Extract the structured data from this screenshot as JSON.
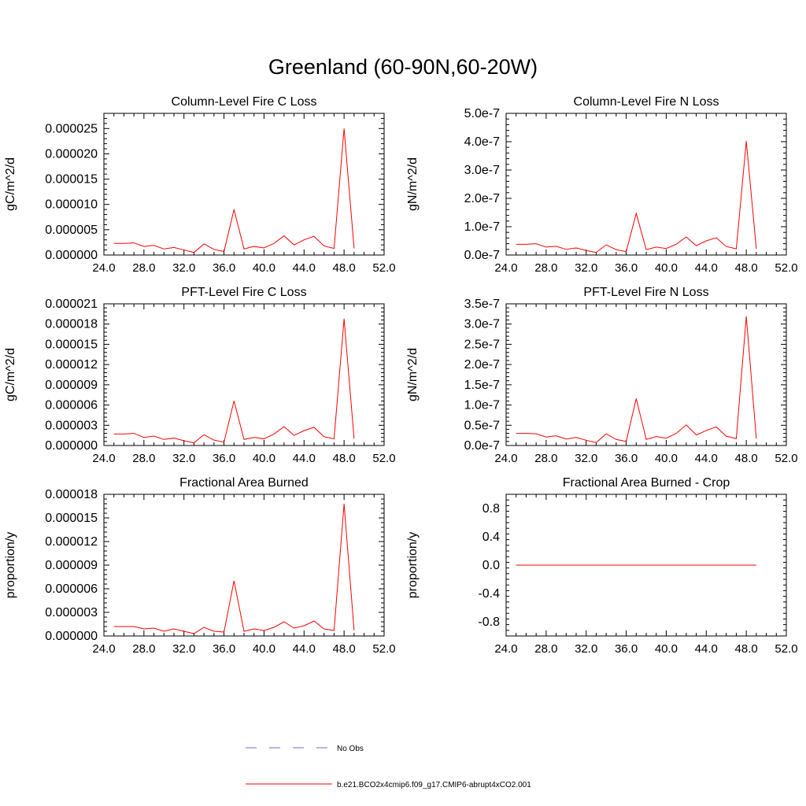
{
  "figure": {
    "title": "Greenland (60-90N,60-20W)"
  },
  "chart_data": [
    {
      "type": "line",
      "title": "Column-Level Fire C Loss",
      "ylabel": "gC/m^2/d",
      "xlim": [
        24,
        52
      ],
      "ylim": [
        0,
        2.8e-05
      ],
      "xticks": [
        "24.0",
        "28.0",
        "32.0",
        "36.0",
        "40.0",
        "44.0",
        "48.0",
        "52.0"
      ],
      "yticks": [
        "0.000000",
        "0.000005",
        "0.000010",
        "0.000015",
        "0.000020",
        "0.000025"
      ],
      "series": [
        {
          "name": "b.e21.BCO2x4cmip6.f09_g17.CMIP6-abrupt4xCO2.001",
          "color": "#ff0000",
          "x": [
            25,
            26,
            27,
            28,
            29,
            30,
            31,
            32,
            33,
            34,
            35,
            36,
            37,
            38,
            39,
            40,
            41,
            42,
            43,
            44,
            45,
            46,
            47,
            48,
            49
          ],
          "y": [
            2.3e-06,
            2.3e-06,
            2.4e-06,
            1.7e-06,
            1.9e-06,
            1.2e-06,
            1.5e-06,
            1e-06,
            5e-07,
            2.2e-06,
            1.1e-06,
            7e-07,
            9e-06,
            1.2e-06,
            1.7e-06,
            1.4e-06,
            2.3e-06,
            3.8e-06,
            2e-06,
            3e-06,
            3.7e-06,
            1.8e-06,
            1.3e-06,
            2.5e-05,
            1.3e-06
          ]
        }
      ]
    },
    {
      "type": "line",
      "title": "Column-Level Fire N Loss",
      "ylabel": "gN/m^2/d",
      "xlim": [
        24,
        52
      ],
      "ylim": [
        0,
        5e-07
      ],
      "xticks": [
        "24.0",
        "28.0",
        "32.0",
        "36.0",
        "40.0",
        "44.0",
        "48.0",
        "52.0"
      ],
      "yticks": [
        "0.0e-7",
        "1.0e-7",
        "2.0e-7",
        "3.0e-7",
        "4.0e-7",
        "5.0e-7"
      ],
      "series": [
        {
          "name": "b.e21.BCO2x4cmip6.f09_g17.CMIP6-abrupt4xCO2.001",
          "color": "#ff0000",
          "x": [
            25,
            26,
            27,
            28,
            29,
            30,
            31,
            32,
            33,
            34,
            35,
            36,
            37,
            38,
            39,
            40,
            41,
            42,
            43,
            44,
            45,
            46,
            47,
            48,
            49
          ],
          "y": [
            3.8e-08,
            3.8e-08,
            4e-08,
            2.8e-08,
            3.1e-08,
            2e-08,
            2.5e-08,
            1.6e-08,
            9e-09,
            3.6e-08,
            1.9e-08,
            1.2e-08,
            1.47e-07,
            1.9e-08,
            2.8e-08,
            2.3e-08,
            3.8e-08,
            6.4e-08,
            3.3e-08,
            5e-08,
            6.1e-08,
            3e-08,
            2.2e-08,
            4.02e-07,
            2.2e-08
          ]
        }
      ]
    },
    {
      "type": "line",
      "title": "PFT-Level Fire C Loss",
      "ylabel": "gC/m^2/d",
      "xlim": [
        24,
        52
      ],
      "ylim": [
        0,
        2.1e-05
      ],
      "xticks": [
        "24.0",
        "28.0",
        "32.0",
        "36.0",
        "40.0",
        "44.0",
        "48.0",
        "52.0"
      ],
      "yticks": [
        "0.000000",
        "0.000003",
        "0.000006",
        "0.000009",
        "0.000012",
        "0.000015",
        "0.000018",
        "0.000021"
      ],
      "series": [
        {
          "name": "b.e21.BCO2x4cmip6.f09_g17.CMIP6-abrupt4xCO2.001",
          "color": "#ff0000",
          "x": [
            25,
            26,
            27,
            28,
            29,
            30,
            31,
            32,
            33,
            34,
            35,
            36,
            37,
            38,
            39,
            40,
            41,
            42,
            43,
            44,
            45,
            46,
            47,
            48,
            49
          ],
          "y": [
            1.7e-06,
            1.7e-06,
            1.8e-06,
            1.2e-06,
            1.4e-06,
            9e-07,
            1.1e-06,
            7e-07,
            4e-07,
            1.6e-06,
            8e-07,
            5e-07,
            6.6e-06,
            9e-07,
            1.2e-06,
            1e-06,
            1.7e-06,
            2.8e-06,
            1.5e-06,
            2.2e-06,
            2.7e-06,
            1.3e-06,
            1e-06,
            1.88e-05,
            1e-06
          ]
        }
      ]
    },
    {
      "type": "line",
      "title": "PFT-Level Fire N Loss",
      "ylabel": "gN/m^2/d",
      "xlim": [
        24,
        52
      ],
      "ylim": [
        0,
        3.5e-07
      ],
      "xticks": [
        "24.0",
        "28.0",
        "32.0",
        "36.0",
        "40.0",
        "44.0",
        "48.0",
        "52.0"
      ],
      "yticks": [
        "0.0e-7",
        "0.5e-7",
        "1.0e-7",
        "1.5e-7",
        "2.0e-7",
        "2.5e-7",
        "3.0e-7",
        "3.5e-7"
      ],
      "series": [
        {
          "name": "b.e21.BCO2x4cmip6.f09_g17.CMIP6-abrupt4xCO2.001",
          "color": "#ff0000",
          "x": [
            25,
            26,
            27,
            28,
            29,
            30,
            31,
            32,
            33,
            34,
            35,
            36,
            37,
            38,
            39,
            40,
            41,
            42,
            43,
            44,
            45,
            46,
            47,
            48,
            49
          ],
          "y": [
            3e-08,
            3e-08,
            2.9e-08,
            2.1e-08,
            2.4e-08,
            1.6e-08,
            2e-08,
            1.3e-08,
            7e-09,
            2.9e-08,
            1.5e-08,
            1e-08,
            1.16e-07,
            1.5e-08,
            2.2e-08,
            1.8e-08,
            3e-08,
            5.1e-08,
            2.6e-08,
            3.7e-08,
            4.6e-08,
            2.3e-08,
            1.7e-08,
            3.19e-07,
            1.7e-08
          ]
        }
      ]
    },
    {
      "type": "line",
      "title": "Fractional Area Burned",
      "ylabel": "proportion/y",
      "xlim": [
        24,
        52
      ],
      "ylim": [
        0,
        1.8e-05
      ],
      "xticks": [
        "24.0",
        "28.0",
        "32.0",
        "36.0",
        "40.0",
        "44.0",
        "48.0",
        "52.0"
      ],
      "yticks": [
        "0.000000",
        "0.000003",
        "0.000006",
        "0.000009",
        "0.000012",
        "0.000015",
        "0.000018"
      ],
      "series": [
        {
          "name": "b.e21.BCO2x4cmip6.f09_g17.CMIP6-abrupt4xCO2.001",
          "color": "#ff0000",
          "x": [
            25,
            26,
            27,
            28,
            29,
            30,
            31,
            32,
            33,
            34,
            35,
            36,
            37,
            38,
            39,
            40,
            41,
            42,
            43,
            44,
            45,
            46,
            47,
            48,
            49
          ],
          "y": [
            1.2e-06,
            1.2e-06,
            1.2e-06,
            9e-07,
            1e-06,
            6e-07,
            9e-07,
            6e-07,
            3e-07,
            1.1e-06,
            6e-07,
            5e-07,
            7e-06,
            6e-07,
            9e-07,
            7e-07,
            1.1e-06,
            1.8e-06,
            1e-06,
            1.3e-06,
            1.9e-06,
            9e-07,
            7e-07,
            1.68e-05,
            7e-07
          ]
        }
      ]
    },
    {
      "type": "line",
      "title": "Fractional Area Burned - Crop",
      "ylabel": "proportion/y",
      "xlim": [
        24,
        52
      ],
      "ylim": [
        -1,
        1
      ],
      "xticks": [
        "24.0",
        "28.0",
        "32.0",
        "36.0",
        "40.0",
        "44.0",
        "48.0",
        "52.0"
      ],
      "yticks": [
        "-0.8",
        "-0.4",
        "0.0",
        "0.4",
        "0.8"
      ],
      "series": [
        {
          "name": "b.e21.BCO2x4cmip6.f09_g17.CMIP6-abrupt4xCO2.001",
          "color": "#ff0000",
          "x": [
            25,
            26,
            27,
            28,
            29,
            30,
            31,
            32,
            33,
            34,
            35,
            36,
            37,
            38,
            39,
            40,
            41,
            42,
            43,
            44,
            45,
            46,
            47,
            48,
            49
          ],
          "y": [
            0,
            0,
            0,
            0,
            0,
            0,
            0,
            0,
            0,
            0,
            0,
            0,
            0,
            0,
            0,
            0,
            0,
            0,
            0,
            0,
            0,
            0,
            0,
            0,
            0
          ]
        }
      ]
    }
  ],
  "legend": {
    "placement": "bottom-center",
    "entries": [
      {
        "label": "No Obs",
        "color": "#6a6ad8",
        "style": "dashed"
      },
      {
        "label": "b.e21.BCO2x4cmip6.f09_g17.CMIP6-abrupt4xCO2.001",
        "color": "#ff0000",
        "style": "solid"
      }
    ]
  }
}
